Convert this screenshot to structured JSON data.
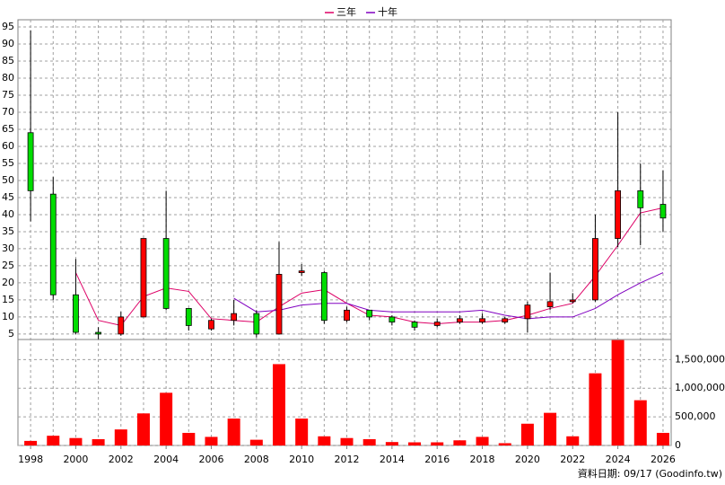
{
  "chart_data": {
    "type": "candlestick",
    "x": [
      1998,
      1999,
      2000,
      2001,
      2002,
      2003,
      2004,
      2005,
      2006,
      2007,
      2008,
      2009,
      2010,
      2011,
      2012,
      2013,
      2014,
      2015,
      2016,
      2017,
      2018,
      2019,
      2020,
      2021,
      2022,
      2023,
      2024,
      2025,
      2026
    ],
    "open": [
      64,
      46,
      16.5,
      5.5,
      5,
      10,
      33,
      12.5,
      6.5,
      9,
      11,
      5,
      23,
      23,
      9,
      12,
      10,
      8.5,
      7.5,
      8.5,
      8.5,
      8.5,
      9.5,
      13,
      14.5,
      15,
      33,
      47,
      43
    ],
    "high": [
      94,
      51,
      27,
      7,
      11.5,
      33,
      47,
      12.5,
      9.5,
      15,
      12,
      32,
      25.5,
      23.5,
      13,
      12,
      10.5,
      9,
      9.5,
      10.5,
      11,
      10,
      14.5,
      23,
      17,
      40,
      70,
      55,
      53
    ],
    "low": [
      38,
      15,
      5,
      3.5,
      4.5,
      10,
      12,
      6,
      6,
      7.5,
      4,
      5,
      22,
      8,
      8.5,
      9,
      7.5,
      6,
      7,
      8,
      8,
      8,
      5.5,
      12,
      14,
      14.5,
      30.5,
      31,
      35
    ],
    "close": [
      47,
      16.5,
      5.5,
      5,
      10,
      33,
      12.5,
      7.5,
      9,
      11,
      5,
      22.5,
      23.5,
      9,
      12,
      10,
      8.5,
      7,
      8.5,
      9.5,
      9.5,
      9.5,
      13.5,
      14.5,
      15,
      33,
      47,
      42,
      39
    ],
    "up_color": "#ff0000",
    "down_color": "#00dd00",
    "lines": [
      {
        "name": "三年",
        "color": "#dd0066",
        "values": [
          null,
          null,
          23,
          9,
          7.5,
          16,
          18.5,
          17.5,
          9.5,
          9,
          8.5,
          13,
          17,
          18,
          14,
          10.5,
          10,
          8.5,
          8,
          8.5,
          8.5,
          9,
          10.5,
          12.5,
          14,
          22,
          31,
          40.5,
          42
        ]
      },
      {
        "name": "十年",
        "color": "#8000c0",
        "values": [
          null,
          null,
          null,
          null,
          null,
          null,
          null,
          null,
          null,
          15.5,
          11.5,
          12,
          13.5,
          14,
          14,
          12,
          11.5,
          11.5,
          11.5,
          11.5,
          12,
          10.5,
          9.5,
          10,
          10,
          12.5,
          16.5,
          20,
          23
        ]
      }
    ],
    "xlim": [
      1997.44,
      2026.36
    ],
    "xticks": [
      1998,
      2000,
      2002,
      2004,
      2006,
      2008,
      2010,
      2012,
      2014,
      2016,
      2018,
      2020,
      2022,
      2024,
      2026
    ],
    "ylim": [
      3.4,
      97.1
    ],
    "yticks": [
      5,
      10,
      15,
      20,
      25,
      30,
      35,
      40,
      45,
      50,
      55,
      60,
      65,
      70,
      75,
      80,
      85,
      90,
      95
    ],
    "volume": {
      "color": "#ff0000",
      "values": [
        80000,
        170000,
        130000,
        110000,
        280000,
        560000,
        920000,
        220000,
        150000,
        470000,
        100000,
        1420000,
        470000,
        160000,
        130000,
        110000,
        60000,
        55000,
        55000,
        90000,
        150000,
        40000,
        380000,
        570000,
        160000,
        1260000,
        1840000,
        790000,
        220000
      ],
      "y2lim": [
        0,
        1850000
      ],
      "y2ticks": [
        0,
        {
          "value": 500000,
          "label": "500,000"
        },
        {
          "value": 1000000,
          "label": "1,000,000"
        },
        {
          "value": 1500000,
          "label": "1,500,000"
        }
      ]
    },
    "grid": true,
    "footnote": "資料日期: 09/17  (Goodinfo.tw)"
  }
}
